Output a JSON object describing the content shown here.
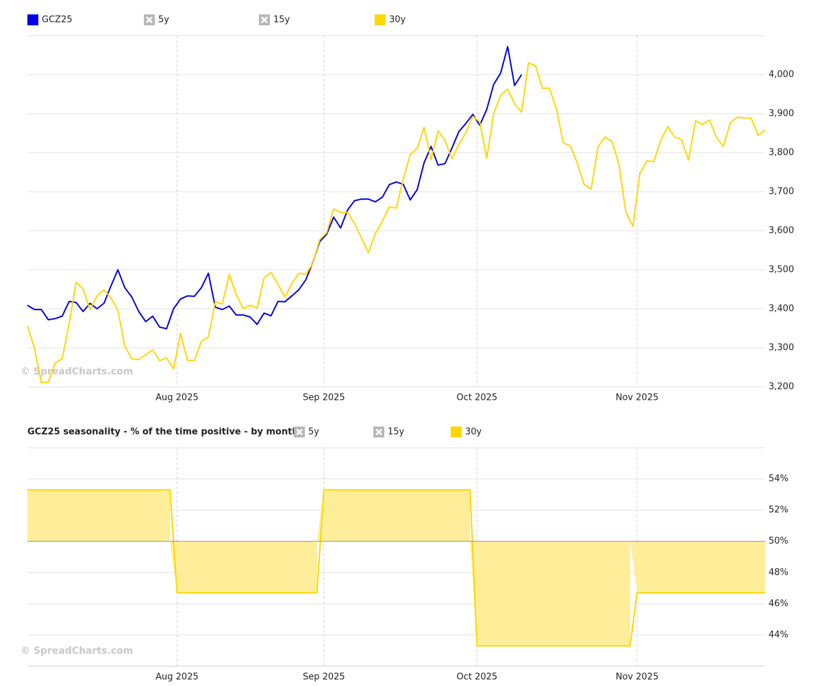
{
  "chart_data": [
    {
      "type": "line",
      "x": [
        0,
        1,
        2,
        3,
        4,
        5,
        6,
        7,
        8,
        9,
        10,
        11,
        12,
        13,
        14,
        15,
        16,
        17,
        18,
        19,
        20,
        21,
        22,
        23,
        24,
        25,
        26,
        27,
        28,
        29,
        30,
        31,
        32,
        33,
        34,
        35,
        36,
        37,
        38,
        39,
        40,
        41,
        42,
        43,
        44,
        45,
        46,
        47,
        48,
        49,
        50,
        51,
        52,
        53,
        54,
        55,
        56,
        57,
        58,
        59,
        60,
        61,
        62,
        63,
        64,
        65,
        66,
        67,
        68,
        69,
        70,
        71,
        72,
        73,
        74,
        75,
        76,
        77,
        78,
        79,
        80,
        81,
        82,
        83,
        84,
        85,
        86,
        87,
        88,
        89,
        90,
        91,
        92,
        93,
        94,
        95,
        96,
        97,
        98,
        99,
        100,
        101,
        102,
        103,
        104,
        105,
        106
      ],
      "xlim": [
        0,
        106
      ],
      "xticks": [
        {
          "value": 21.5,
          "label": "Aug 2025"
        },
        {
          "value": 42.6,
          "label": "Sep 2025"
        },
        {
          "value": 64.6,
          "label": "Oct 2025"
        },
        {
          "value": 87.6,
          "label": "Nov 2025"
        }
      ],
      "ylim": [
        3200,
        4100
      ],
      "yticks": [
        {
          "value": 3200,
          "label": "3,200"
        },
        {
          "value": 3300,
          "label": "3,300"
        },
        {
          "value": 3400,
          "label": "3,400"
        },
        {
          "value": 3500,
          "label": "3,500"
        },
        {
          "value": 3600,
          "label": "3,600"
        },
        {
          "value": 3700,
          "label": "3,700"
        },
        {
          "value": 3800,
          "label": "3,800"
        },
        {
          "value": 3900,
          "label": "3,900"
        },
        {
          "value": 4000,
          "label": "4,000"
        }
      ],
      "grid": true,
      "watermark": "© SpreadCharts.com",
      "series": [
        {
          "name": "GCZ25",
          "color": "#0000e0",
          "values": [
            3409,
            3398,
            3398,
            3372,
            3375,
            3381,
            3419,
            3416,
            3393,
            3414,
            3400,
            3414,
            3458,
            3500,
            3454,
            3430,
            3393,
            3367,
            3381,
            3353,
            3349,
            3400,
            3425,
            3433,
            3432,
            3454,
            3491,
            3404,
            3398,
            3407,
            3384,
            3384,
            3379,
            3360,
            3389,
            3382,
            3419,
            3418,
            3433,
            3449,
            3474,
            3518,
            3572,
            3591,
            3635,
            3607,
            3653,
            3677,
            3681,
            3681,
            3674,
            3686,
            3718,
            3725,
            3719,
            3679,
            3705,
            3774,
            3816,
            3768,
            3772,
            3812,
            3854,
            3875,
            3898,
            3870,
            3911,
            3975,
            4004,
            4072,
            3972,
            4000,
            null,
            null,
            null,
            null,
            null,
            null,
            null,
            null,
            null,
            null,
            null,
            null,
            null,
            null,
            null,
            null,
            null,
            null,
            null,
            null,
            null,
            null,
            null,
            null,
            null,
            null,
            null,
            null,
            null,
            null,
            null,
            null,
            null,
            null,
            null
          ]
        },
        {
          "name": "5y",
          "visible": false
        },
        {
          "name": "15y",
          "visible": false
        },
        {
          "name": "30y",
          "color": "#ffd700",
          "values": [
            3356,
            3300,
            3211,
            3212,
            3261,
            3272,
            3363,
            3467,
            3451,
            3398,
            3433,
            3449,
            3428,
            3396,
            3304,
            3272,
            3270,
            3282,
            3295,
            3267,
            3274,
            3246,
            3337,
            3268,
            3267,
            3316,
            3328,
            3418,
            3412,
            3488,
            3437,
            3400,
            3409,
            3402,
            3479,
            3493,
            3463,
            3430,
            3465,
            3491,
            3488,
            3516,
            3577,
            3595,
            3656,
            3646,
            3647,
            3619,
            3581,
            3544,
            3593,
            3625,
            3661,
            3658,
            3732,
            3795,
            3811,
            3865,
            3782,
            3856,
            3832,
            3784,
            3821,
            3851,
            3893,
            3879,
            3786,
            3900,
            3947,
            3963,
            3925,
            3904,
            4030,
            4023,
            3965,
            3965,
            3914,
            3825,
            3818,
            3774,
            3718,
            3707,
            3816,
            3840,
            3828,
            3770,
            3646,
            3611,
            3747,
            3779,
            3777,
            3832,
            3867,
            3840,
            3833,
            3781,
            3882,
            3872,
            3884,
            3839,
            3816,
            3877,
            3891,
            3889,
            3888,
            3844,
            3858
          ]
        }
      ]
    },
    {
      "type": "area",
      "title": "GCZ25 seasonality - % of the time positive - by month:",
      "x": [
        0,
        21.5,
        42.6,
        64.6,
        87.6
      ],
      "xlim": [
        0,
        106
      ],
      "xticks": [
        {
          "value": 21.5,
          "label": "Aug 2025"
        },
        {
          "value": 42.6,
          "label": "Sep 2025"
        },
        {
          "value": 64.6,
          "label": "Oct 2025"
        },
        {
          "value": 87.6,
          "label": "Nov 2025"
        }
      ],
      "ylim": [
        42,
        56
      ],
      "yticks": [
        {
          "value": 44,
          "label": "44%"
        },
        {
          "value": 46,
          "label": "46%"
        },
        {
          "value": 48,
          "label": "48%"
        },
        {
          "value": 50,
          "label": "50%"
        },
        {
          "value": 52,
          "label": "52%"
        },
        {
          "value": 54,
          "label": "54%"
        }
      ],
      "baseline": 50,
      "grid": true,
      "watermark": "© SpreadCharts.com",
      "series": [
        {
          "name": "5y",
          "visible": false
        },
        {
          "name": "15y",
          "visible": false
        },
        {
          "name": "30y",
          "color": "#ffd700",
          "fill": "#ffee99",
          "values": [
            53.3,
            46.7,
            53.3,
            43.3,
            46.7
          ]
        }
      ]
    }
  ]
}
